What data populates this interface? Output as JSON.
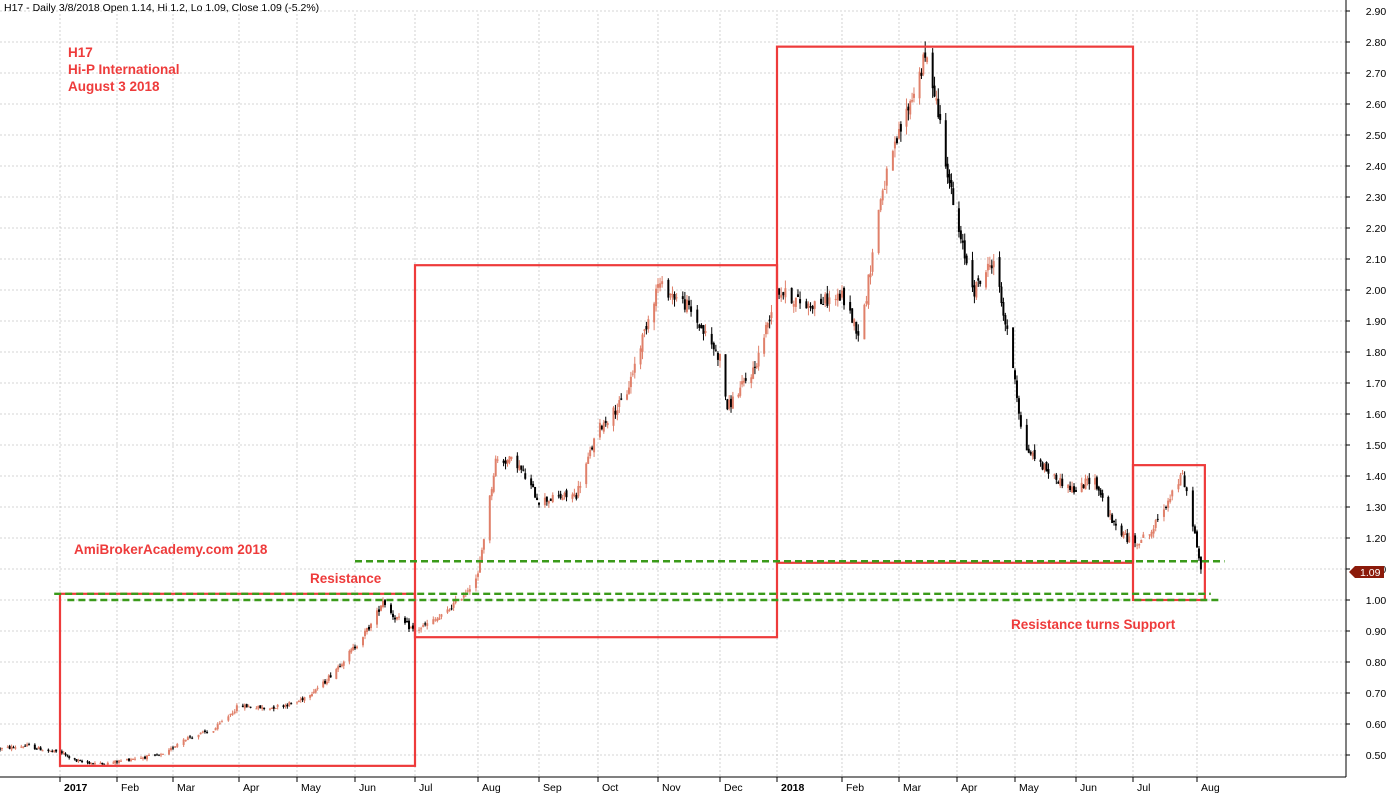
{
  "chart_data": {
    "type": "candlestick",
    "header": "H17 - Daily 3/8/2018 Open 1.14, Hi 1.2, Lo 1.09, Close 1.09 (-5.2%)",
    "title_lines": [
      "H17",
      "Hi-P International",
      "August 3 2018"
    ],
    "watermark": "AmiBrokerAcademy.com  2018",
    "annotations": [
      "Resistance",
      "Resistance turns Support"
    ],
    "last_price_label": "1.09",
    "ylim": [
      0.44,
      2.92
    ],
    "y_ticks": [
      "0.50",
      "0.60",
      "0.70",
      "0.80",
      "0.90",
      "1.00",
      "1.10",
      "1.20",
      "1.30",
      "1.40",
      "1.50",
      "1.60",
      "1.70",
      "1.80",
      "1.90",
      "2.00",
      "2.10",
      "2.20",
      "2.30",
      "2.40",
      "2.50",
      "2.60",
      "2.70",
      "2.80",
      "2.90"
    ],
    "x_ticks": [
      "2017",
      "Feb",
      "Mar",
      "Apr",
      "May",
      "Jun",
      "Jul",
      "Aug",
      "Sep",
      "Oct",
      "Nov",
      "Dec",
      "2018",
      "Feb",
      "Mar",
      "Apr",
      "May",
      "Jun",
      "Jul",
      "Aug"
    ],
    "x_tick_dates": [
      "2017-01-01",
      "2017-02-01",
      "2017-03-01",
      "2017-04-01",
      "2017-05-01",
      "2017-06-01",
      "2017-07-01",
      "2017-08-01",
      "2017-09-01",
      "2017-10-01",
      "2017-11-01",
      "2017-12-01",
      "2018-01-01",
      "2018-02-01",
      "2018-03-01",
      "2018-04-01",
      "2018-05-01",
      "2018-06-01",
      "2018-07-01",
      "2018-08-01"
    ],
    "price_path": [
      {
        "x": "2016-12-01",
        "y": 0.52
      },
      {
        "x": "2016-12-15",
        "y": 0.53
      },
      {
        "x": "2016-12-28",
        "y": 0.51
      },
      {
        "x": "2017-01-01",
        "y": 0.51
      },
      {
        "x": "2017-01-10",
        "y": 0.48
      },
      {
        "x": "2017-01-25",
        "y": 0.47
      },
      {
        "x": "2017-02-10",
        "y": 0.49
      },
      {
        "x": "2017-02-25",
        "y": 0.5
      },
      {
        "x": "2017-03-05",
        "y": 0.55
      },
      {
        "x": "2017-03-20",
        "y": 0.58
      },
      {
        "x": "2017-04-01",
        "y": 0.66
      },
      {
        "x": "2017-04-15",
        "y": 0.65
      },
      {
        "x": "2017-05-01",
        "y": 0.67
      },
      {
        "x": "2017-05-15",
        "y": 0.73
      },
      {
        "x": "2017-06-01",
        "y": 0.85
      },
      {
        "x": "2017-06-10",
        "y": 0.93
      },
      {
        "x": "2017-06-15",
        "y": 1.0
      },
      {
        "x": "2017-06-20",
        "y": 0.95
      },
      {
        "x": "2017-07-01",
        "y": 0.9
      },
      {
        "x": "2017-07-15",
        "y": 0.95
      },
      {
        "x": "2017-07-25",
        "y": 1.02
      },
      {
        "x": "2017-08-01",
        "y": 1.08
      },
      {
        "x": "2017-08-10",
        "y": 1.45
      },
      {
        "x": "2017-08-20",
        "y": 1.45
      },
      {
        "x": "2017-09-01",
        "y": 1.32
      },
      {
        "x": "2017-09-20",
        "y": 1.34
      },
      {
        "x": "2017-10-01",
        "y": 1.55
      },
      {
        "x": "2017-10-15",
        "y": 1.65
      },
      {
        "x": "2017-11-01",
        "y": 2.02
      },
      {
        "x": "2017-11-15",
        "y": 1.95
      },
      {
        "x": "2017-12-01",
        "y": 1.78
      },
      {
        "x": "2017-12-05",
        "y": 1.62
      },
      {
        "x": "2017-12-20",
        "y": 1.75
      },
      {
        "x": "2018-01-01",
        "y": 2.0
      },
      {
        "x": "2018-01-15",
        "y": 1.95
      },
      {
        "x": "2018-02-01",
        "y": 1.98
      },
      {
        "x": "2018-02-10",
        "y": 1.85
      },
      {
        "x": "2018-02-20",
        "y": 2.3
      },
      {
        "x": "2018-03-01",
        "y": 2.5
      },
      {
        "x": "2018-03-15",
        "y": 2.75
      },
      {
        "x": "2018-03-20",
        "y": 2.65
      },
      {
        "x": "2018-04-01",
        "y": 2.2
      },
      {
        "x": "2018-04-10",
        "y": 2.0
      },
      {
        "x": "2018-04-20",
        "y": 2.1
      },
      {
        "x": "2018-05-01",
        "y": 1.72
      },
      {
        "x": "2018-05-05",
        "y": 1.5
      },
      {
        "x": "2018-05-20",
        "y": 1.4
      },
      {
        "x": "2018-06-01",
        "y": 1.35
      },
      {
        "x": "2018-06-10",
        "y": 1.4
      },
      {
        "x": "2018-06-20",
        "y": 1.25
      },
      {
        "x": "2018-07-01",
        "y": 1.18
      },
      {
        "x": "2018-07-10",
        "y": 1.22
      },
      {
        "x": "2018-07-20",
        "y": 1.35
      },
      {
        "x": "2018-07-25",
        "y": 1.4
      },
      {
        "x": "2018-07-30",
        "y": 1.25
      },
      {
        "x": "2018-08-03",
        "y": 1.09
      }
    ],
    "boxes": [
      {
        "name": "box-1",
        "x": [
          "2017-01-01",
          "2017-07-01"
        ],
        "y": [
          0.465,
          1.02
        ]
      },
      {
        "name": "box-2",
        "x": [
          "2017-07-01",
          "2018-01-01"
        ],
        "y": [
          0.88,
          2.08
        ]
      },
      {
        "name": "box-3",
        "x": [
          "2018-01-01",
          "2018-07-01"
        ],
        "y": [
          1.12,
          2.785
        ]
      },
      {
        "name": "box-4",
        "x": [
          "2018-07-01",
          "2018-08-05"
        ],
        "y": [
          1.0,
          1.435
        ]
      }
    ],
    "levels": [
      {
        "name": "level-1",
        "y": 1.125,
        "x": [
          "2017-06-01",
          "2018-08-15"
        ]
      },
      {
        "name": "level-2",
        "y": 1.02,
        "x": [
          "2016-12-29",
          "2018-08-08"
        ]
      },
      {
        "name": "level-3",
        "y": 1.0,
        "x": [
          "2017-01-05",
          "2018-08-12"
        ]
      }
    ],
    "colors": {
      "up_candle": "#e0806a",
      "down_candle": "#000000",
      "box": "#ee3b3b",
      "level": "#3a9a1a",
      "grid": "#c8c8c8",
      "price_tag": "#8b1a0a"
    }
  }
}
